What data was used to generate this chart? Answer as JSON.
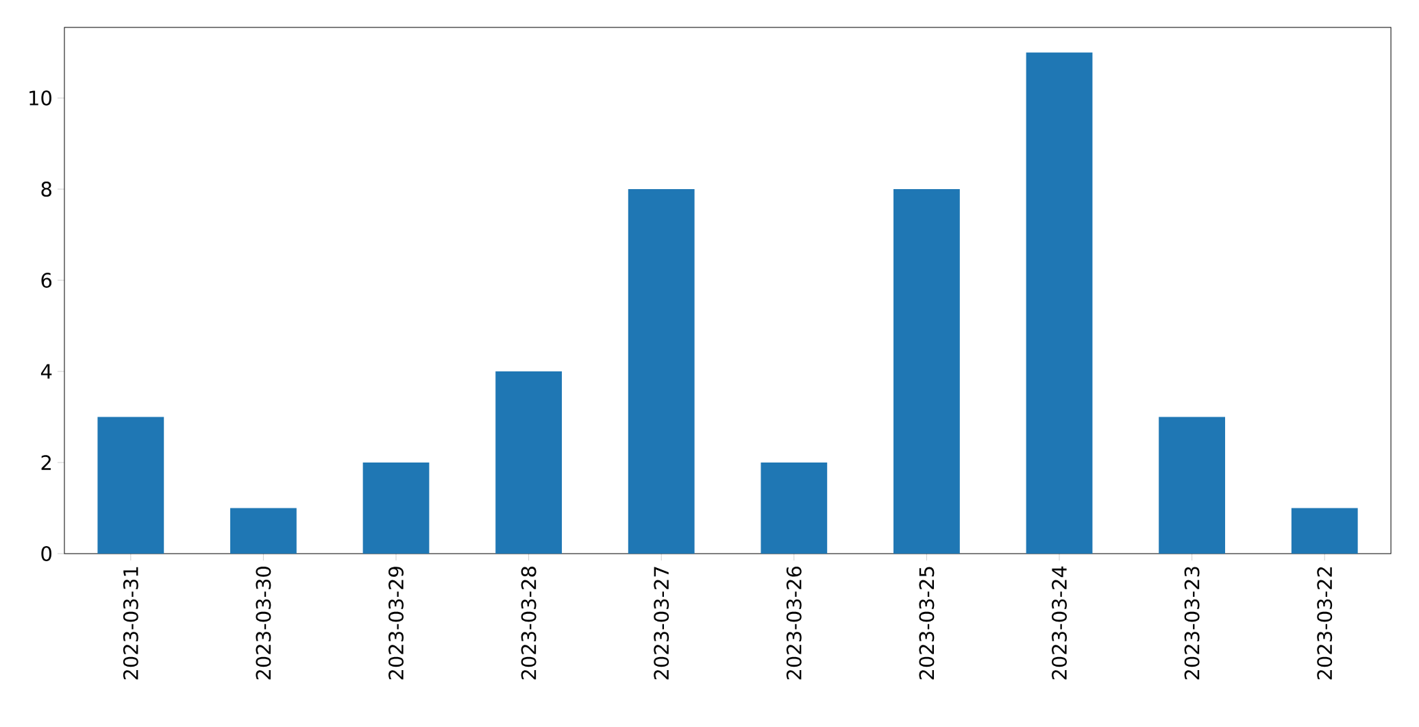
{
  "chart_data": {
    "type": "bar",
    "categories": [
      "2023-03-31",
      "2023-03-30",
      "2023-03-29",
      "2023-03-28",
      "2023-03-27",
      "2023-03-26",
      "2023-03-25",
      "2023-03-24",
      "2023-03-23",
      "2023-03-22"
    ],
    "values": [
      3,
      1,
      2,
      4,
      8,
      2,
      8,
      11,
      3,
      1
    ],
    "color": "#1f77b4",
    "ylim": [
      0,
      11.55
    ],
    "yticks": [
      0,
      2,
      4,
      6,
      8,
      10
    ]
  }
}
